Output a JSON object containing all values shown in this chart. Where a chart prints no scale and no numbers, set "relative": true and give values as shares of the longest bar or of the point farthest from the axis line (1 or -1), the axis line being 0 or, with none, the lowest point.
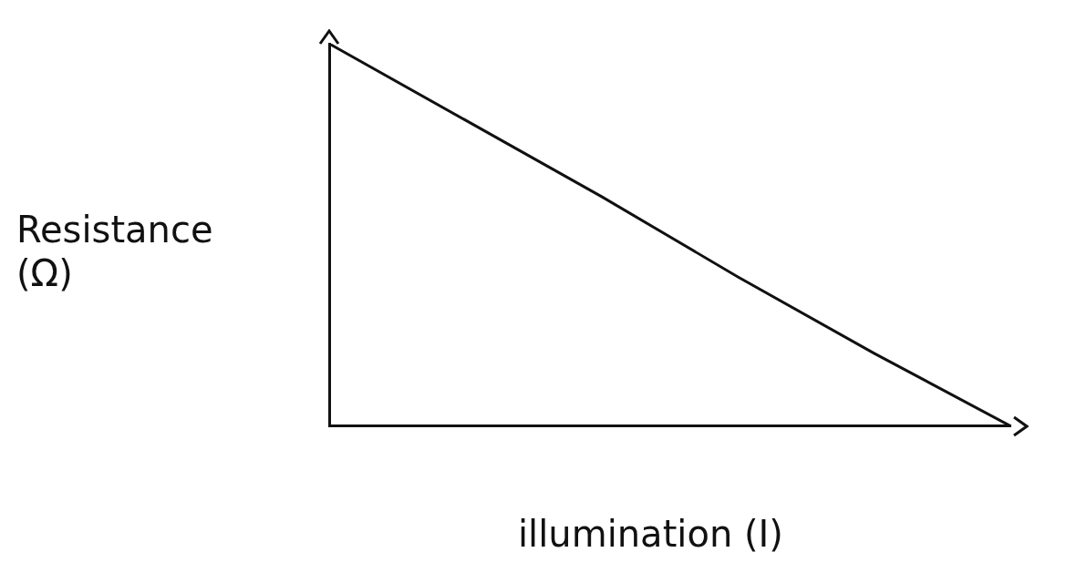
{
  "chart_data": {
    "type": "line",
    "xlabel": "illumination (I)",
    "ylabel": "Resistance\n(Ω)",
    "relative": true,
    "categories": [
      null,
      null,
      null,
      null,
      null,
      null
    ],
    "series": [
      {
        "color": "#111111",
        "values": [
          1,
          0.8,
          0.6,
          0.39,
          0.19,
          0
        ]
      }
    ],
    "grid": false,
    "legend": false,
    "marker": "none",
    "line_style": "solid"
  }
}
